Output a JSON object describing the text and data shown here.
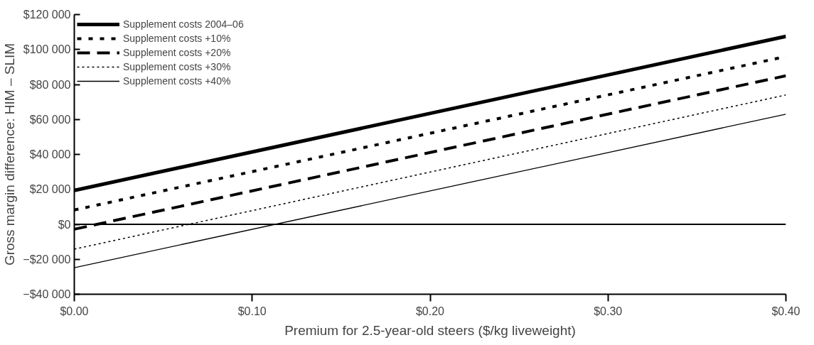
{
  "chart_data": {
    "type": "line",
    "xlabel": "Premium for 2.5-year-old steers ($/kg liveweight)",
    "ylabel": "Gross margin difference: HIM – SLIM",
    "x": [
      0,
      0.4
    ],
    "series": [
      {
        "name": "Supplement costs 2004–06",
        "color": "#000000",
        "line_style": "solid",
        "values": [
          19400,
          107500
        ]
      },
      {
        "name": "Supplement costs +10%",
        "color": "#000000",
        "line_style": "dashed",
        "values": [
          8200,
          96000
        ]
      },
      {
        "name": "Supplement costs +20%",
        "color": "#000000",
        "line_style": "dashed",
        "values": [
          -2800,
          85000
        ]
      },
      {
        "name": "Supplement costs +30%",
        "color": "#000000",
        "line_style": "dotted",
        "values": [
          -14200,
          74000
        ]
      },
      {
        "name": "Supplement costs +40%",
        "color": "#000000",
        "line_style": "solid",
        "values": [
          -24800,
          63000
        ]
      }
    ],
    "xlim": [
      0,
      0.4
    ],
    "xticks": [
      {
        "value": 0,
        "label": "$0.00"
      },
      {
        "value": 0.1,
        "label": "$0.10"
      },
      {
        "value": 0.2,
        "label": "$0.20"
      },
      {
        "value": 0.3,
        "label": "$0.30"
      },
      {
        "value": 0.4,
        "label": "$0.40"
      }
    ],
    "ylim": [
      -40000,
      120000
    ],
    "yticks": [
      {
        "value": -40000,
        "label": "−$40 000"
      },
      {
        "value": -20000,
        "label": "−$20 000"
      },
      {
        "value": 0,
        "label": "$0"
      },
      {
        "value": 20000,
        "label": "$20 000"
      },
      {
        "value": 40000,
        "label": "$40 000"
      },
      {
        "value": 60000,
        "label": "$60 000"
      },
      {
        "value": 80000,
        "label": "$80 000"
      },
      {
        "value": 100000,
        "label": "$100 000"
      },
      {
        "value": 120000,
        "label": "$120 000"
      }
    ],
    "ref_lines": [
      {
        "axis": "y",
        "value": 0,
        "color": "#000000"
      }
    ],
    "grid": false,
    "legend": "top left",
    "marker": "none"
  }
}
